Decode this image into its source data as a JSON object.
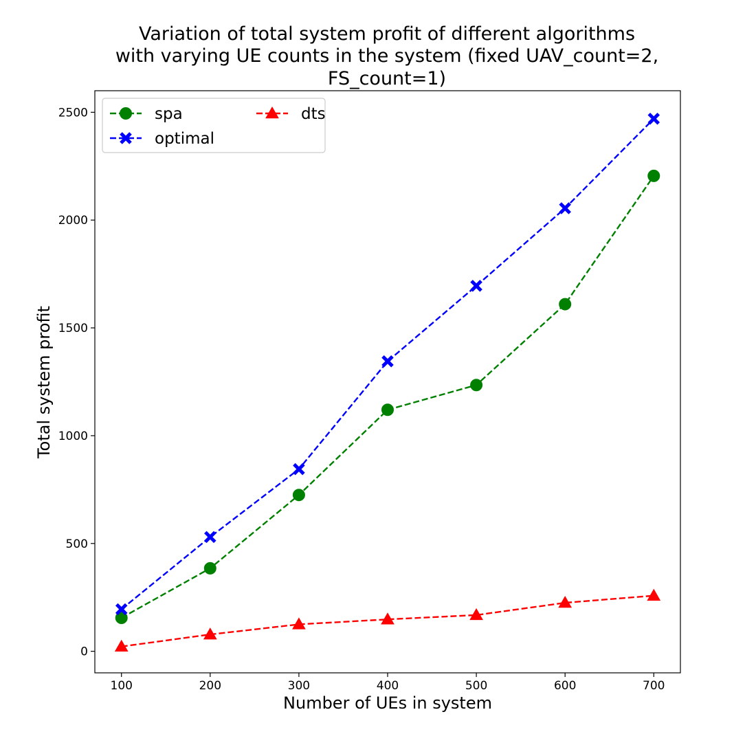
{
  "chart_data": {
    "type": "line",
    "title_lines": [
      "Variation of total system profit of different algorithms",
      "with varying UE counts in the system (fixed UAV_count=2,",
      "FS_count=1)"
    ],
    "xlabel": "Number of UEs in system",
    "ylabel": "Total system profit",
    "x": [
      100,
      200,
      300,
      400,
      500,
      600,
      700
    ],
    "xlim": [
      70,
      730
    ],
    "ylim": [
      -100,
      2600
    ],
    "xticks": [
      100,
      200,
      300,
      400,
      500,
      600,
      700
    ],
    "yticks": [
      0,
      500,
      1000,
      1500,
      2000,
      2500
    ],
    "grid": false,
    "legend_position": "top-left",
    "series": [
      {
        "name": "spa",
        "color": "#008000",
        "marker": "circle",
        "linestyle": "dashed",
        "values": [
          155,
          385,
          725,
          1120,
          1235,
          1610,
          2205
        ]
      },
      {
        "name": "dts",
        "color": "#ff0000",
        "marker": "triangle",
        "linestyle": "dashed",
        "values": [
          22,
          78,
          125,
          148,
          168,
          225,
          258
        ]
      },
      {
        "name": "optimal",
        "color": "#0000ff",
        "marker": "x",
        "linestyle": "dashed",
        "values": [
          195,
          530,
          845,
          1345,
          1695,
          2055,
          2470
        ]
      }
    ]
  }
}
